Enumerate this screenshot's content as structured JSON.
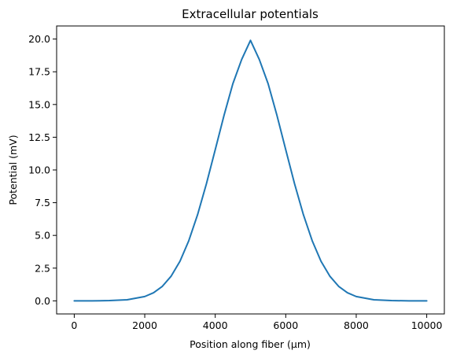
{
  "chart_data": {
    "type": "line",
    "title": "Extracellular potentials",
    "xlabel": "Position along fiber (μm)",
    "ylabel": "Potential (mV)",
    "xlim": [
      -500,
      10500
    ],
    "ylim": [
      -1.0,
      21.0
    ],
    "xticks": [
      0,
      2000,
      4000,
      6000,
      8000,
      10000
    ],
    "xtick_labels": [
      "0",
      "2000",
      "4000",
      "6000",
      "8000",
      "10000"
    ],
    "yticks": [
      0.0,
      2.5,
      5.0,
      7.5,
      10.0,
      12.5,
      15.0,
      17.5,
      20.0
    ],
    "ytick_labels": [
      "0.0",
      "2.5",
      "5.0",
      "7.5",
      "10.0",
      "12.5",
      "15.0",
      "17.5",
      "20.0"
    ],
    "grid": false,
    "legend": "none",
    "series": [
      {
        "color": "#1f77b4",
        "x": [
          0,
          500,
          1000,
          1500,
          2000,
          2250,
          2500,
          2750,
          3000,
          3250,
          3500,
          3750,
          4000,
          4250,
          4500,
          4750,
          5000,
          5250,
          5500,
          5750,
          6000,
          6250,
          6500,
          6750,
          7000,
          7250,
          7500,
          7750,
          8000,
          8500,
          9000,
          9500,
          10000
        ],
        "values": [
          0.0,
          0.0,
          0.02,
          0.08,
          0.33,
          0.62,
          1.11,
          1.89,
          3.03,
          4.6,
          6.59,
          8.95,
          11.55,
          14.18,
          16.59,
          18.44,
          19.9,
          18.44,
          16.59,
          14.18,
          11.55,
          8.95,
          6.59,
          4.6,
          3.03,
          1.89,
          1.11,
          0.62,
          0.33,
          0.08,
          0.02,
          0.0,
          0.0
        ]
      }
    ]
  }
}
